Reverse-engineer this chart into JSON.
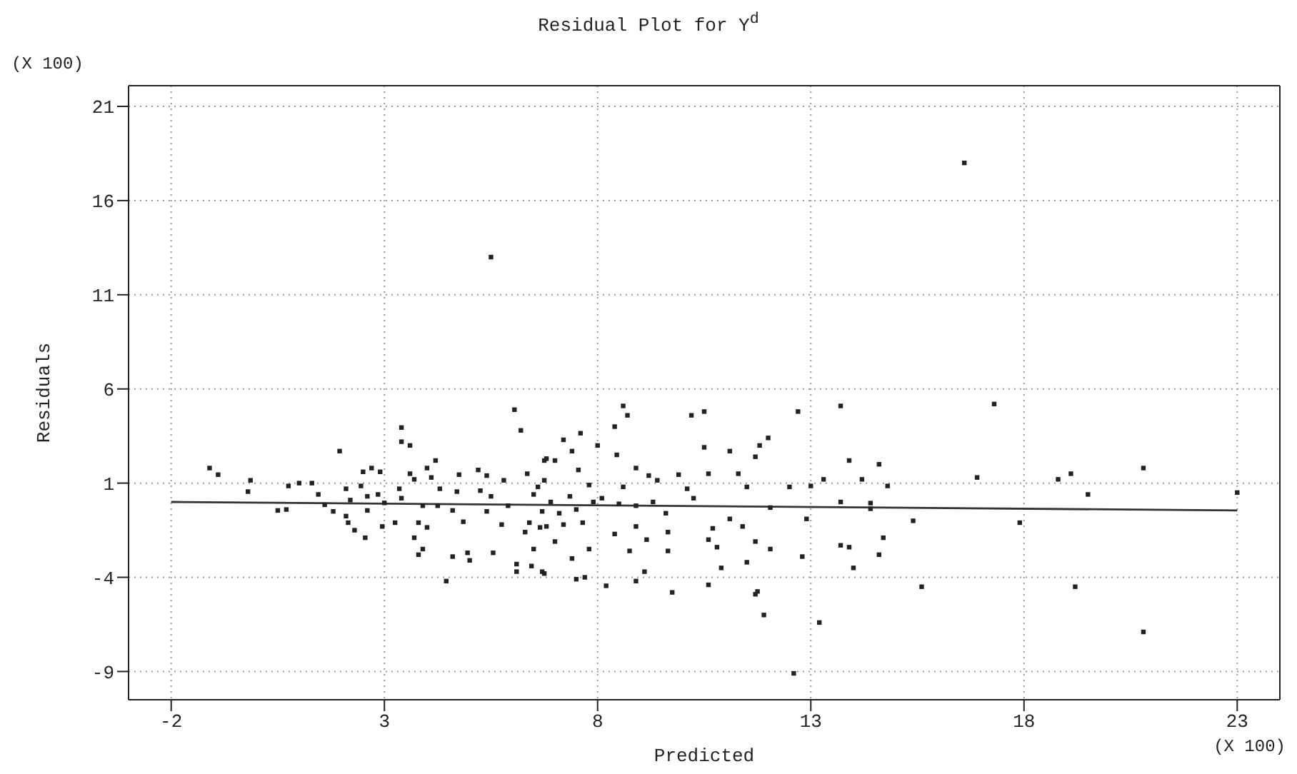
{
  "chart_data": {
    "type": "scatter",
    "title": "Residual Plot for Y$^{d}$",
    "xlabel": "Predicted",
    "ylabel": "Residuals",
    "annotations": [
      "(X 100)",
      "(X 100)"
    ],
    "xlim": [
      -3,
      24
    ],
    "ylim": [
      -10.5,
      22.1
    ],
    "xticks": [
      -2,
      3,
      8,
      13,
      18,
      23
    ],
    "yticks": [
      -9,
      -4,
      1,
      6,
      11,
      16,
      21
    ],
    "grid": true,
    "series": [
      {
        "marker": "square",
        "color": "#222222",
        "x": [
          16.6,
          17.3,
          14.2,
          14.6,
          14.8,
          14.4,
          14.4,
          15.4,
          14.7,
          14.6,
          14.0,
          15.6,
          16.9,
          17.9,
          18.8,
          19.1,
          19.5,
          19.2,
          20.8,
          20.8,
          23.0,
          5.5,
          12.6,
          13.2,
          11.9,
          11.75,
          8.6,
          8.7,
          8.4,
          7.6,
          7.2,
          10.2,
          10.5,
          12.7,
          13.7,
          12.0,
          11.8,
          10.5,
          11.1,
          11.7,
          13.9,
          11.3,
          10.6,
          9.9,
          9.2,
          13.3,
          13.0,
          12.5,
          11.5,
          10.1,
          8.6,
          13.7,
          12.05,
          12.9,
          11.1,
          11.4,
          10.7,
          9.65,
          8.9,
          8.4,
          11.7,
          10.6,
          9.15,
          13.7,
          13.9,
          12.05,
          10.8,
          9.65,
          8.75,
          12.8,
          11.5,
          10.9,
          9.1,
          8.9,
          8.2,
          10.6,
          9.75,
          11.7,
          7.5,
          7.7,
          6.7,
          7.4,
          7.8,
          7.0,
          6.8,
          7.2,
          7.65,
          7.1,
          7.5,
          6.9,
          7.9,
          7.35,
          8.1,
          8.5,
          8.9,
          9.3,
          9.6,
          10.25,
          6.75,
          7.8,
          7.55,
          7.0,
          8.0,
          8.45,
          8.9,
          9.4,
          7.4,
          6.8,
          -1.1,
          -0.9,
          -0.14,
          -0.2,
          0.5,
          0.7,
          0.75,
          1.0,
          1.3,
          1.45,
          1.6,
          1.8,
          1.95,
          2.1,
          2.1,
          2.2,
          2.15,
          2.3,
          2.5,
          2.7,
          2.45,
          2.55,
          2.6,
          2.6,
          2.85,
          2.9,
          2.95,
          3.0,
          3.25,
          3.4,
          3.4,
          3.6,
          3.35,
          3.4,
          3.6,
          3.7,
          3.8,
          3.7,
          3.8,
          3.9,
          4.0,
          4.1,
          3.9,
          4.0,
          4.2,
          4.3,
          4.25,
          4.45,
          4.6,
          4.6,
          4.7,
          4.75,
          4.85,
          4.95,
          5.0,
          5.2,
          5.25,
          5.4,
          5.4,
          5.5,
          5.55,
          5.75,
          5.8,
          5.9,
          6.05,
          6.2,
          6.1,
          6.1,
          6.3,
          6.35,
          6.5,
          6.5,
          6.45,
          6.6,
          6.75,
          6.75,
          6.65,
          6.7,
          6.4
        ],
        "values": [
          18.0,
          5.2,
          1.2,
          2.0,
          0.85,
          -0.06,
          -0.36,
          -1.0,
          -1.9,
          -2.8,
          -3.5,
          -4.5,
          1.3,
          -1.1,
          1.2,
          1.5,
          0.4,
          -4.5,
          1.8,
          -6.9,
          0.5,
          13.0,
          -9.1,
          -6.4,
          -6.0,
          -4.75,
          5.1,
          4.6,
          4.0,
          3.65,
          3.3,
          4.6,
          4.8,
          4.8,
          5.1,
          3.4,
          3.0,
          2.9,
          2.7,
          2.4,
          2.2,
          1.5,
          1.5,
          1.45,
          1.4,
          1.2,
          0.85,
          0.8,
          0.8,
          0.7,
          0.8,
          0.0,
          -0.3,
          -0.9,
          -0.9,
          -1.3,
          -1.4,
          -1.6,
          -1.3,
          -1.7,
          -2.1,
          -2.0,
          -2.0,
          -2.3,
          -2.4,
          -2.5,
          -2.4,
          -2.6,
          -2.6,
          -2.9,
          -3.2,
          -3.5,
          -3.7,
          -4.2,
          -4.45,
          -4.4,
          -4.8,
          -4.9,
          -4.1,
          -4.0,
          -3.7,
          -3.0,
          -2.5,
          -2.1,
          -1.3,
          -1.2,
          -1.1,
          -0.6,
          -0.4,
          0.0,
          0.0,
          0.3,
          0.2,
          -0.1,
          -0.2,
          0.0,
          -0.6,
          0.2,
          1.15,
          0.9,
          1.7,
          2.2,
          3.0,
          2.5,
          1.8,
          1.15,
          2.7,
          2.3,
          1.8,
          1.45,
          1.15,
          0.55,
          -0.45,
          -0.4,
          0.85,
          1.0,
          1.0,
          0.4,
          -0.15,
          -0.5,
          2.7,
          0.7,
          -0.75,
          0.1,
          -1.1,
          -1.5,
          1.6,
          1.8,
          0.85,
          -1.9,
          0.3,
          -0.45,
          0.4,
          1.6,
          -1.3,
          -0.05,
          -1.1,
          3.95,
          3.2,
          3.0,
          0.7,
          0.2,
          1.5,
          1.2,
          -2.8,
          -1.9,
          -1.1,
          -0.2,
          1.8,
          1.3,
          -2.5,
          -1.35,
          2.2,
          0.7,
          -0.2,
          -4.2,
          -0.45,
          -2.9,
          0.55,
          1.45,
          -1.05,
          -2.7,
          -3.1,
          1.7,
          0.6,
          1.4,
          -0.5,
          0.3,
          -2.7,
          -1.2,
          1.15,
          -0.2,
          4.9,
          3.8,
          -3.3,
          -3.7,
          -1.6,
          1.5,
          0.4,
          -2.5,
          -3.4,
          0.8,
          2.2,
          -3.8,
          -1.35,
          -0.5,
          -1.1
        ]
      },
      {
        "type": "line",
        "color": "#333333",
        "x": [
          -2,
          23
        ],
        "values": [
          0.0,
          -0.45
        ]
      }
    ]
  }
}
